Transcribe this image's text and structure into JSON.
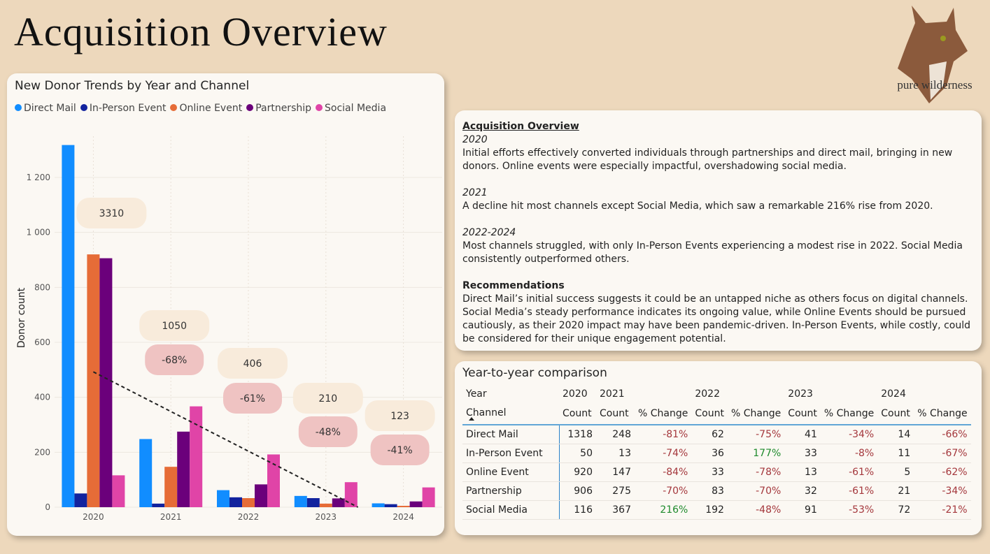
{
  "page_title": "Acquisition Overview",
  "logo_text": "pure wilderness",
  "chart_data": {
    "type": "bar",
    "title": "New Donor Trends by Year and Channel",
    "y_label": "Donor count",
    "categories": [
      "2020",
      "2021",
      "2022",
      "2023",
      "2024"
    ],
    "series": [
      {
        "name": "Direct Mail",
        "color": "#118DFF",
        "values": [
          1318,
          248,
          62,
          41,
          14
        ]
      },
      {
        "name": "In-Person Event",
        "color": "#12239E",
        "values": [
          50,
          13,
          36,
          33,
          11
        ]
      },
      {
        "name": "Online Event",
        "color": "#E66C37",
        "values": [
          920,
          147,
          33,
          13,
          5
        ]
      },
      {
        "name": "Partnership",
        "color": "#6B007B",
        "values": [
          906,
          275,
          83,
          32,
          21
        ]
      },
      {
        "name": "Social Media",
        "color": "#E044A7",
        "values": [
          116,
          367,
          192,
          91,
          72
        ]
      }
    ],
    "ylim": [
      0,
      1350
    ],
    "yticks": [
      0,
      200,
      400,
      600,
      800,
      {
        "value": 1000,
        "label": "1 000"
      },
      {
        "value": 1200,
        "label": "1 200"
      }
    ],
    "grid": true,
    "trend_line": true,
    "legend": "top",
    "totals": [
      3310,
      1050,
      406,
      210,
      123
    ],
    "change": {
      "values": [
        null,
        -68,
        -61,
        -48,
        -41
      ],
      "value_labels": [
        null,
        "-68%",
        "-61%",
        "-48%",
        "-41%"
      ]
    }
  },
  "narrative": {
    "heading": "Acquisition Overview",
    "sections": [
      {
        "heading": "2020",
        "text": "Initial efforts effectively converted individuals through partnerships and direct mail, bringing in new donors. Online events were especially impactful, overshadowing social media."
      },
      {
        "heading": "2021",
        "text": "A decline hit most channels except Social Media, which saw a remarkable 216% rise from 2020."
      },
      {
        "heading": "2022-2024",
        "text": "Most channels struggled, with only In-Person Events experiencing a modest rise in 2022. Social Media consistently outperformed others."
      },
      {
        "heading": "Recommendations",
        "text": "Direct Mail’s initial success suggests it could be an untapped niche as others focus on digital channels. Social Media’s steady performance indicates its ongoing value, while Online Events should be pursued cautiously, as their 2020 impact may have been pandemic-driven. In-Person Events, while costly, could be considered for their unique engagement potential."
      }
    ]
  },
  "table": {
    "title": "Year-to-year comparison",
    "year_header": "Year",
    "channel_header": "Channel",
    "years": [
      "2020",
      "2021",
      "2022",
      "2023",
      "2024"
    ],
    "columns": [
      "Count",
      "Count",
      "% Change",
      "Count",
      "% Change",
      "Count",
      "% Change",
      "Count",
      "% Change"
    ],
    "rows": [
      [
        "Direct Mail",
        1318,
        248,
        "-81%",
        62,
        "-75%",
        41,
        "-34%",
        14,
        "-66%"
      ],
      [
        "In-Person Event",
        50,
        13,
        "-74%",
        36,
        "177%",
        33,
        "-8%",
        11,
        "-67%"
      ],
      [
        "Online Event",
        920,
        147,
        "-84%",
        33,
        "-78%",
        13,
        "-61%",
        5,
        "-62%"
      ],
      [
        "Partnership",
        906,
        275,
        "-70%",
        83,
        "-70%",
        32,
        "-61%",
        21,
        "-34%"
      ],
      [
        "Social Media",
        116,
        367,
        "216%",
        192,
        "-48%",
        91,
        "-53%",
        72,
        "-21%"
      ]
    ]
  }
}
